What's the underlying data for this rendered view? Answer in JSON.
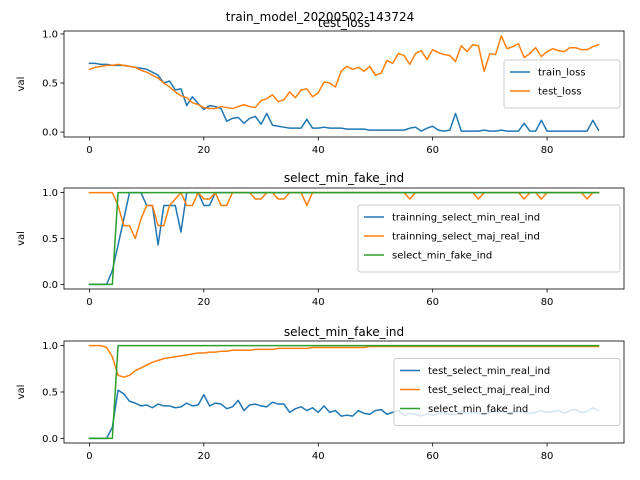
{
  "figure": {
    "suptitle": "train_model_20200502-143724"
  },
  "colors": {
    "blue": "#1f77b4",
    "orange": "#ff7f0e",
    "green": "#2ca02c"
  },
  "chart_data": [
    {
      "type": "line",
      "title": "test_loss",
      "ylabel": "val",
      "xlabel": "",
      "xlim": [
        -4.45,
        93.45
      ],
      "ylim": [
        -0.05,
        1.03
      ],
      "xticks": [
        0,
        20,
        40,
        60,
        80
      ],
      "yticks": [
        0.0,
        0.5,
        1.0
      ],
      "ytick_labels": [
        "0.0",
        "0.5",
        "1.0"
      ],
      "legend": "right",
      "series": [
        {
          "name": "train_loss",
          "color": "#1f77b4",
          "values": [
            0.7,
            0.7,
            0.69,
            0.69,
            0.68,
            0.68,
            0.68,
            0.67,
            0.66,
            0.65,
            0.64,
            0.61,
            0.58,
            0.5,
            0.52,
            0.43,
            0.44,
            0.27,
            0.36,
            0.29,
            0.23,
            0.27,
            0.26,
            0.24,
            0.11,
            0.14,
            0.15,
            0.09,
            0.14,
            0.16,
            0.08,
            0.19,
            0.07,
            0.06,
            0.05,
            0.04,
            0.04,
            0.04,
            0.13,
            0.04,
            0.04,
            0.05,
            0.04,
            0.04,
            0.04,
            0.03,
            0.03,
            0.03,
            0.03,
            0.02,
            0.02,
            0.02,
            0.02,
            0.02,
            0.02,
            0.02,
            0.04,
            0.05,
            0.01,
            0.04,
            0.06,
            0.02,
            0.01,
            0.02,
            0.19,
            0.01,
            0.01,
            0.01,
            0.01,
            0.02,
            0.01,
            0.01,
            0.02,
            0.01,
            0.01,
            0.01,
            0.09,
            0.01,
            0.01,
            0.12,
            0.01,
            0.01,
            0.01,
            0.01,
            0.01,
            0.01,
            0.01,
            0.01,
            0.12,
            0.02
          ]
        },
        {
          "name": "test_loss",
          "color": "#ff7f0e",
          "values": [
            0.64,
            0.66,
            0.67,
            0.68,
            0.68,
            0.69,
            0.68,
            0.67,
            0.66,
            0.63,
            0.61,
            0.58,
            0.55,
            0.5,
            0.46,
            0.41,
            0.37,
            0.35,
            0.3,
            0.28,
            0.25,
            0.24,
            0.24,
            0.26,
            0.25,
            0.24,
            0.26,
            0.28,
            0.26,
            0.25,
            0.32,
            0.34,
            0.38,
            0.31,
            0.33,
            0.41,
            0.35,
            0.43,
            0.44,
            0.36,
            0.4,
            0.51,
            0.5,
            0.46,
            0.62,
            0.67,
            0.64,
            0.66,
            0.62,
            0.67,
            0.58,
            0.6,
            0.73,
            0.7,
            0.8,
            0.78,
            0.69,
            0.8,
            0.83,
            0.74,
            0.84,
            0.81,
            0.79,
            0.78,
            0.72,
            0.88,
            0.82,
            0.89,
            0.88,
            0.62,
            0.8,
            0.79,
            0.98,
            0.85,
            0.87,
            0.9,
            0.76,
            0.8,
            0.86,
            0.77,
            0.82,
            0.85,
            0.83,
            0.82,
            0.86,
            0.86,
            0.84,
            0.84,
            0.87,
            0.89
          ]
        }
      ]
    },
    {
      "type": "line",
      "title": "select_min_fake_ind",
      "ylabel": "val",
      "xlabel": "",
      "xlim": [
        -4.45,
        93.45
      ],
      "ylim": [
        -0.05,
        1.05
      ],
      "xticks": [
        0,
        20,
        40,
        60,
        80
      ],
      "yticks": [
        0.0,
        0.5,
        1.0
      ],
      "ytick_labels": [
        "0.0",
        "0.5",
        "1.0"
      ],
      "legend": "right",
      "series": [
        {
          "name": "trainning_select_min_real_ind",
          "color": "#1f77b4",
          "values": [
            0,
            0,
            0,
            0,
            0.15,
            0.43,
            0.71,
            1.0,
            1.0,
            1.0,
            0.86,
            0.86,
            0.43,
            0.86,
            0.86,
            0.86,
            0.57,
            1.0,
            1.0,
            1.0,
            0.86,
            0.86,
            1.0,
            1.0,
            1.0,
            1.0,
            1.0,
            1.0,
            1.0,
            1.0,
            1.0,
            1.0,
            1.0,
            1.0,
            1.0,
            1.0,
            1.0,
            1.0,
            1.0,
            1.0,
            1.0,
            1.0,
            1.0,
            1.0,
            1.0,
            1.0,
            1.0,
            1.0,
            1.0,
            1.0,
            1.0,
            1.0,
            1.0,
            1.0,
            1.0,
            1.0,
            1.0,
            1.0,
            1.0,
            1.0,
            1.0,
            1.0,
            1.0,
            1.0,
            1.0,
            1.0,
            1.0,
            1.0,
            1.0,
            1.0,
            1.0,
            1.0,
            1.0,
            1.0,
            1.0,
            1.0,
            1.0,
            1.0,
            1.0,
            1.0,
            1.0,
            1.0,
            1.0,
            1.0,
            1.0,
            1.0,
            1.0,
            1.0,
            1.0,
            1.0
          ]
        },
        {
          "name": "trainning_select_maj_real_ind",
          "color": "#ff7f0e",
          "values": [
            1.0,
            1.0,
            1.0,
            1.0,
            1.0,
            0.86,
            0.64,
            0.64,
            0.5,
            0.71,
            0.86,
            0.86,
            0.64,
            0.64,
            0.86,
            0.93,
            1.0,
            0.86,
            0.86,
            1.0,
            0.93,
            0.93,
            1.0,
            0.86,
            0.86,
            1.0,
            1.0,
            1.0,
            1.0,
            0.93,
            0.93,
            1.0,
            1.0,
            0.93,
            0.93,
            1.0,
            1.0,
            1.0,
            0.86,
            1.0,
            1.0,
            1.0,
            1.0,
            1.0,
            1.0,
            1.0,
            1.0,
            1.0,
            1.0,
            1.0,
            1.0,
            1.0,
            1.0,
            1.0,
            1.0,
            1.0,
            0.93,
            1.0,
            1.0,
            1.0,
            1.0,
            1.0,
            1.0,
            1.0,
            1.0,
            1.0,
            1.0,
            1.0,
            0.93,
            1.0,
            1.0,
            1.0,
            1.0,
            1.0,
            1.0,
            1.0,
            0.93,
            1.0,
            1.0,
            0.93,
            1.0,
            1.0,
            1.0,
            1.0,
            1.0,
            1.0,
            1.0,
            0.93,
            1.0,
            1.0
          ]
        },
        {
          "name": "select_min_fake_ind",
          "color": "#2ca02c",
          "values": [
            0,
            0,
            0,
            0,
            0,
            1,
            1,
            1,
            1,
            1,
            1,
            1,
            1,
            1,
            1,
            1,
            1,
            1,
            1,
            1,
            1,
            1,
            1,
            1,
            1,
            1,
            1,
            1,
            1,
            1,
            1,
            1,
            1,
            1,
            1,
            1,
            1,
            1,
            1,
            1,
            1,
            1,
            1,
            1,
            1,
            1,
            1,
            1,
            1,
            1,
            1,
            1,
            1,
            1,
            1,
            1,
            1,
            1,
            1,
            1,
            1,
            1,
            1,
            1,
            1,
            1,
            1,
            1,
            1,
            1,
            1,
            1,
            1,
            1,
            1,
            1,
            1,
            1,
            1,
            1,
            1,
            1,
            1,
            1,
            1,
            1,
            1,
            1,
            1,
            1
          ]
        }
      ]
    },
    {
      "type": "line",
      "title": "select_min_fake_ind",
      "ylabel": "val",
      "xlabel": "",
      "xlim": [
        -4.45,
        93.45
      ],
      "ylim": [
        -0.05,
        1.05
      ],
      "xticks": [
        0,
        20,
        40,
        60,
        80
      ],
      "yticks": [
        0.0,
        0.5,
        1.0
      ],
      "ytick_labels": [
        "0.0",
        "0.5",
        "1.0"
      ],
      "legend": "right",
      "series": [
        {
          "name": "test_select_min_real_ind",
          "color": "#1f77b4",
          "values": [
            0,
            0,
            0,
            0,
            0.12,
            0.52,
            0.48,
            0.4,
            0.38,
            0.35,
            0.36,
            0.33,
            0.37,
            0.35,
            0.35,
            0.33,
            0.34,
            0.38,
            0.35,
            0.36,
            0.47,
            0.35,
            0.38,
            0.37,
            0.32,
            0.34,
            0.41,
            0.3,
            0.36,
            0.37,
            0.35,
            0.34,
            0.39,
            0.37,
            0.37,
            0.28,
            0.32,
            0.34,
            0.3,
            0.33,
            0.28,
            0.35,
            0.28,
            0.3,
            0.24,
            0.25,
            0.24,
            0.3,
            0.27,
            0.26,
            0.3,
            0.31,
            0.26,
            0.28,
            0.3,
            0.25,
            0.27,
            0.26,
            0.24,
            0.27,
            0.25,
            0.27,
            0.28,
            0.26,
            0.26,
            0.29,
            0.27,
            0.28,
            0.27,
            0.26,
            0.28,
            0.29,
            0.3,
            0.27,
            0.28,
            0.29,
            0.28,
            0.27,
            0.28,
            0.3,
            0.28,
            0.29,
            0.3,
            0.27,
            0.3,
            0.31,
            0.28,
            0.29,
            0.33,
            0.3
          ]
        },
        {
          "name": "test_select_maj_real_ind",
          "color": "#ff7f0e",
          "values": [
            1.0,
            1.0,
            1.0,
            0.98,
            0.88,
            0.68,
            0.66,
            0.68,
            0.73,
            0.76,
            0.79,
            0.82,
            0.84,
            0.86,
            0.87,
            0.88,
            0.89,
            0.9,
            0.91,
            0.92,
            0.92,
            0.93,
            0.93,
            0.94,
            0.94,
            0.95,
            0.95,
            0.95,
            0.95,
            0.96,
            0.96,
            0.96,
            0.96,
            0.97,
            0.97,
            0.97,
            0.97,
            0.97,
            0.97,
            0.98,
            0.98,
            0.98,
            0.98,
            0.98,
            0.98,
            0.98,
            0.98,
            0.98,
            0.98,
            0.99,
            0.99,
            0.99,
            0.99,
            0.99,
            0.99,
            0.99,
            0.99,
            0.99,
            0.99,
            0.99,
            0.99,
            0.99,
            0.99,
            0.99,
            0.99,
            0.99,
            0.99,
            0.99,
            0.99,
            0.99,
            0.99,
            0.99,
            0.99,
            0.99,
            0.99,
            0.99,
            0.99,
            0.99,
            0.99,
            0.99,
            0.99,
            0.99,
            0.99,
            0.99,
            0.99,
            0.99,
            0.99,
            0.99,
            0.99,
            0.99
          ]
        },
        {
          "name": "select_min_fake_ind",
          "color": "#2ca02c",
          "values": [
            0,
            0,
            0,
            0,
            0,
            1,
            1,
            1,
            1,
            1,
            1,
            1,
            1,
            1,
            1,
            1,
            1,
            1,
            1,
            1,
            1,
            1,
            1,
            1,
            1,
            1,
            1,
            1,
            1,
            1,
            1,
            1,
            1,
            1,
            1,
            1,
            1,
            1,
            1,
            1,
            1,
            1,
            1,
            1,
            1,
            1,
            1,
            1,
            1,
            1,
            1,
            1,
            1,
            1,
            1,
            1,
            1,
            1,
            1,
            1,
            1,
            1,
            1,
            1,
            1,
            1,
            1,
            1,
            1,
            1,
            1,
            1,
            1,
            1,
            1,
            1,
            1,
            1,
            1,
            1,
            1,
            1,
            1,
            1,
            1,
            1,
            1,
            1,
            1,
            1
          ]
        }
      ]
    }
  ]
}
